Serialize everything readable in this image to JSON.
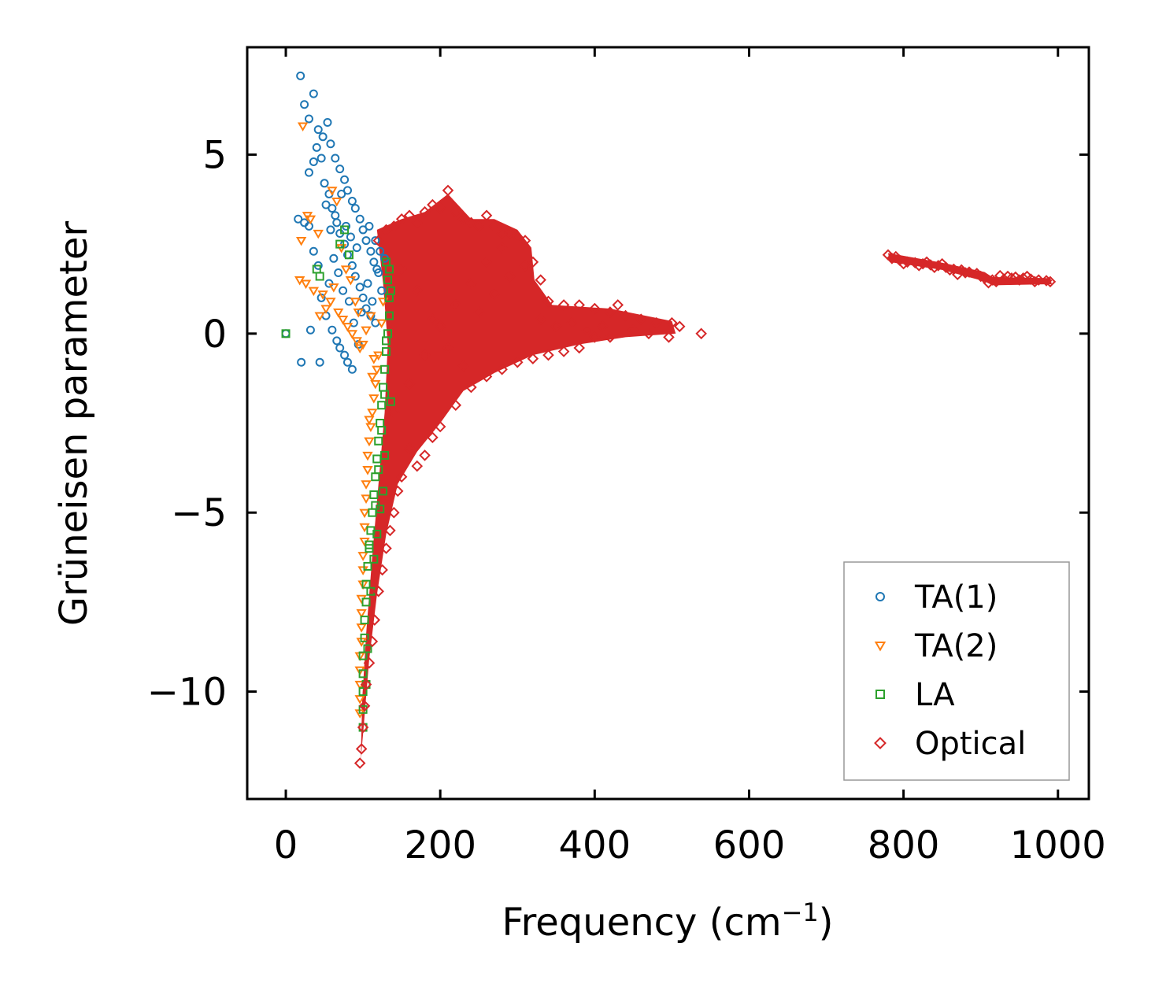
{
  "chart_data": {
    "type": "scatter",
    "title": "",
    "xlabel": "Frequency (cm",
    "xlabel_sup": "−1",
    "xlabel_end": ")",
    "ylabel": "Grüneisen parameter",
    "xlim": [
      -50,
      1040
    ],
    "ylim": [
      -13,
      8
    ],
    "xticks": [
      0,
      200,
      400,
      600,
      800,
      1000
    ],
    "xtick_labels": [
      "0",
      "200",
      "400",
      "600",
      "800",
      "1000"
    ],
    "yticks": [
      -10,
      -5,
      0,
      5
    ],
    "ytick_labels": [
      "−10",
      "−5",
      "0",
      "5"
    ],
    "legend_position": "bottom-right",
    "series": [
      {
        "name": "TA(1)",
        "color": "#1f77b4",
        "marker": "circle",
        "points": [
          [
            19,
            7.2
          ],
          [
            24,
            6.4
          ],
          [
            30,
            6.0
          ],
          [
            36,
            6.7
          ],
          [
            42,
            5.7
          ],
          [
            48,
            5.5
          ],
          [
            54,
            5.9
          ],
          [
            58,
            5.3
          ],
          [
            64,
            4.9
          ],
          [
            70,
            4.6
          ],
          [
            76,
            4.3
          ],
          [
            80,
            4.0
          ],
          [
            86,
            3.7
          ],
          [
            90,
            3.5
          ],
          [
            96,
            3.2
          ],
          [
            100,
            2.9
          ],
          [
            104,
            2.6
          ],
          [
            110,
            2.3
          ],
          [
            114,
            2.0
          ],
          [
            120,
            1.7
          ],
          [
            30,
            4.5
          ],
          [
            36,
            4.8
          ],
          [
            40,
            5.2
          ],
          [
            46,
            4.9
          ],
          [
            50,
            4.2
          ],
          [
            56,
            3.9
          ],
          [
            60,
            3.5
          ],
          [
            66,
            3.1
          ],
          [
            70,
            2.8
          ],
          [
            76,
            2.5
          ],
          [
            80,
            2.2
          ],
          [
            86,
            1.9
          ],
          [
            90,
            1.6
          ],
          [
            96,
            1.3
          ],
          [
            100,
            1.0
          ],
          [
            104,
            0.7
          ],
          [
            110,
            0.5
          ],
          [
            116,
            0.3
          ],
          [
            16,
            3.2
          ],
          [
            24,
            3.1
          ],
          [
            30,
            3.0
          ],
          [
            36,
            2.3
          ],
          [
            42,
            1.9
          ],
          [
            46,
            1.0
          ],
          [
            52,
            0.5
          ],
          [
            60,
            0.1
          ],
          [
            66,
            -0.2
          ],
          [
            70,
            -0.4
          ],
          [
            76,
            -0.6
          ],
          [
            80,
            -0.8
          ],
          [
            86,
            -1.0
          ],
          [
            20,
            -0.8
          ],
          [
            44,
            -0.8
          ],
          [
            0,
            0
          ],
          [
            32,
            0.1
          ],
          [
            56,
            1.4
          ],
          [
            62,
            2.1
          ],
          [
            68,
            1.7
          ],
          [
            74,
            1.2
          ],
          [
            82,
            0.9
          ],
          [
            88,
            0.3
          ],
          [
            94,
            -0.3
          ],
          [
            98,
            0.6
          ],
          [
            106,
            1.4
          ],
          [
            112,
            0.9
          ],
          [
            118,
            1.8
          ],
          [
            124,
            1.2
          ],
          [
            128,
            2.1
          ],
          [
            52,
            3.6
          ],
          [
            58,
            2.9
          ],
          [
            64,
            3.3
          ],
          [
            72,
            3.9
          ],
          [
            78,
            3.0
          ],
          [
            84,
            2.7
          ],
          [
            92,
            2.4
          ],
          [
            108,
            3.0
          ],
          [
            116,
            2.6
          ],
          [
            122,
            2.3
          ]
        ]
      },
      {
        "name": "TA(2)",
        "color": "#ff7f0e",
        "marker": "triangle-down",
        "points": [
          [
            22,
            5.8
          ],
          [
            28,
            3.3
          ],
          [
            32,
            3.2
          ],
          [
            42,
            2.8
          ],
          [
            20,
            2.6
          ],
          [
            18,
            1.5
          ],
          [
            26,
            1.4
          ],
          [
            36,
            1.2
          ],
          [
            48,
            1.1
          ],
          [
            58,
            0.9
          ],
          [
            68,
            0.6
          ],
          [
            74,
            0.4
          ],
          [
            80,
            0.2
          ],
          [
            86,
            0.0
          ],
          [
            92,
            -0.2
          ],
          [
            96,
            -0.4
          ],
          [
            100,
            -0.3
          ],
          [
            104,
            0.1
          ],
          [
            110,
            0.5
          ],
          [
            114,
            -0.7
          ],
          [
            118,
            -1.0
          ],
          [
            116,
            -1.4
          ],
          [
            114,
            -1.8
          ],
          [
            112,
            -2.2
          ],
          [
            110,
            -2.6
          ],
          [
            108,
            -3.0
          ],
          [
            106,
            -3.4
          ],
          [
            106,
            -3.8
          ],
          [
            104,
            -4.2
          ],
          [
            104,
            -4.6
          ],
          [
            102,
            -5.0
          ],
          [
            102,
            -5.4
          ],
          [
            102,
            -5.8
          ],
          [
            100,
            -6.2
          ],
          [
            100,
            -6.6
          ],
          [
            100,
            -7.0
          ],
          [
            98,
            -7.4
          ],
          [
            98,
            -7.8
          ],
          [
            98,
            -8.2
          ],
          [
            98,
            -8.6
          ],
          [
            96,
            -9.0
          ],
          [
            96,
            -9.4
          ],
          [
            96,
            -9.8
          ],
          [
            96,
            -10.2
          ],
          [
            96,
            -10.6
          ],
          [
            108,
            -2.4
          ],
          [
            112,
            -1.2
          ],
          [
            120,
            -0.6
          ],
          [
            124,
            0.3
          ],
          [
            126,
            0.9
          ],
          [
            60,
            4.0
          ],
          [
            66,
            3.7
          ],
          [
            72,
            2.4
          ],
          [
            78,
            1.8
          ],
          [
            84,
            1.5
          ],
          [
            90,
            0.9
          ],
          [
            94,
            0.6
          ],
          [
            62,
            1.3
          ],
          [
            52,
            0.7
          ],
          [
            44,
            0.5
          ]
        ]
      },
      {
        "name": "LA",
        "color": "#2ca02c",
        "marker": "square",
        "points": [
          [
            0,
            0
          ],
          [
            40,
            1.8
          ],
          [
            44,
            1.6
          ],
          [
            70,
            2.5
          ],
          [
            76,
            2.9
          ],
          [
            82,
            2.2
          ],
          [
            130,
            2.0
          ],
          [
            132,
            1.5
          ],
          [
            134,
            1.0
          ],
          [
            134,
            0.5
          ],
          [
            132,
            0.0
          ],
          [
            130,
            -0.5
          ],
          [
            128,
            -1.0
          ],
          [
            126,
            -1.5
          ],
          [
            124,
            -2.0
          ],
          [
            122,
            -2.5
          ],
          [
            120,
            -3.0
          ],
          [
            118,
            -3.5
          ],
          [
            116,
            -4.0
          ],
          [
            114,
            -4.5
          ],
          [
            112,
            -5.0
          ],
          [
            110,
            -5.5
          ],
          [
            108,
            -6.0
          ],
          [
            106,
            -6.5
          ],
          [
            104,
            -7.0
          ],
          [
            104,
            -7.5
          ],
          [
            102,
            -8.0
          ],
          [
            102,
            -8.5
          ],
          [
            100,
            -9.0
          ],
          [
            100,
            -9.5
          ],
          [
            100,
            -10.0
          ],
          [
            100,
            -10.5
          ],
          [
            100,
            -11.0
          ],
          [
            136,
            -1.9
          ],
          [
            128,
            -3.4
          ],
          [
            126,
            -4.4
          ],
          [
            122,
            -4.9
          ],
          [
            118,
            -5.6
          ],
          [
            114,
            -6.3
          ],
          [
            110,
            -7.2
          ],
          [
            134,
            1.8
          ],
          [
            136,
            1.2
          ],
          [
            130,
            -0.2
          ],
          [
            128,
            -1.7
          ],
          [
            124,
            -2.7
          ],
          [
            120,
            -3.8
          ],
          [
            116,
            -4.8
          ],
          [
            108,
            -5.9
          ],
          [
            106,
            -8.8
          ],
          [
            104,
            -9.8
          ]
        ]
      },
      {
        "name": "Optical",
        "color": "#d62728",
        "marker": "diamond",
        "points": [
          [
            120,
            2.6
          ],
          [
            130,
            2.9
          ],
          [
            140,
            3.0
          ],
          [
            150,
            3.2
          ],
          [
            160,
            3.3
          ],
          [
            170,
            3.1
          ],
          [
            180,
            3.4
          ],
          [
            190,
            3.6
          ],
          [
            200,
            3.5
          ],
          [
            210,
            4.0
          ],
          [
            220,
            3.4
          ],
          [
            230,
            3.2
          ],
          [
            240,
            3.1
          ],
          [
            250,
            3.0
          ],
          [
            260,
            3.3
          ],
          [
            270,
            3.0
          ],
          [
            280,
            2.8
          ],
          [
            290,
            2.8
          ],
          [
            300,
            2.7
          ],
          [
            310,
            2.6
          ],
          [
            320,
            2.0
          ],
          [
            330,
            1.5
          ],
          [
            340,
            0.9
          ],
          [
            360,
            0.8
          ],
          [
            380,
            0.8
          ],
          [
            400,
            0.7
          ],
          [
            420,
            0.6
          ],
          [
            430,
            0.8
          ],
          [
            440,
            0.5
          ],
          [
            460,
            0.4
          ],
          [
            480,
            0.3
          ],
          [
            500,
            0.3
          ],
          [
            510,
            0.2
          ],
          [
            538,
            0.0
          ],
          [
            496,
            -0.1
          ],
          [
            470,
            0.0
          ],
          [
            450,
            0.1
          ],
          [
            420,
            -0.1
          ],
          [
            400,
            -0.1
          ],
          [
            380,
            -0.4
          ],
          [
            360,
            -0.5
          ],
          [
            340,
            -0.6
          ],
          [
            320,
            -0.7
          ],
          [
            300,
            -0.8
          ],
          [
            280,
            -1.0
          ],
          [
            260,
            -1.2
          ],
          [
            240,
            -1.5
          ],
          [
            220,
            -2.0
          ],
          [
            200,
            -2.6
          ],
          [
            190,
            -2.9
          ],
          [
            180,
            -3.4
          ],
          [
            170,
            -3.7
          ],
          [
            160,
            -3.2
          ],
          [
            150,
            -4.0
          ],
          [
            145,
            -4.4
          ],
          [
            140,
            -5.0
          ],
          [
            135,
            -5.5
          ],
          [
            130,
            -6.0
          ],
          [
            125,
            -6.6
          ],
          [
            120,
            -7.2
          ],
          [
            115,
            -8.0
          ],
          [
            112,
            -8.6
          ],
          [
            108,
            -9.2
          ],
          [
            104,
            -9.8
          ],
          [
            102,
            -10.4
          ],
          [
            100,
            -11.0
          ],
          [
            98,
            -11.6
          ],
          [
            96,
            -12.0
          ],
          [
            140,
            -2.2
          ],
          [
            160,
            -1.4
          ],
          [
            180,
            -0.6
          ],
          [
            200,
            0.2
          ],
          [
            220,
            0.8
          ],
          [
            240,
            1.4
          ],
          [
            260,
            2.0
          ],
          [
            280,
            2.4
          ],
          [
            150,
            1.8
          ],
          [
            170,
            1.2
          ],
          [
            190,
            0.4
          ],
          [
            210,
            -0.4
          ],
          [
            230,
            -0.9
          ],
          [
            250,
            0.6
          ],
          [
            270,
            1.1
          ],
          [
            290,
            1.6
          ],
          [
            310,
            1.9
          ],
          [
            330,
            0.4
          ],
          [
            350,
            0.2
          ],
          [
            370,
            0.3
          ],
          [
            390,
            0.1
          ],
          [
            410,
            0.2
          ],
          [
            785,
            2.1
          ],
          [
            795,
            2.05
          ],
          [
            805,
            2.0
          ],
          [
            815,
            1.98
          ],
          [
            825,
            1.95
          ],
          [
            835,
            1.92
          ],
          [
            845,
            1.9
          ],
          [
            855,
            1.85
          ],
          [
            865,
            1.8
          ],
          [
            875,
            1.78
          ],
          [
            885,
            1.72
          ],
          [
            895,
            1.68
          ],
          [
            905,
            1.55
          ],
          [
            915,
            1.5
          ],
          [
            925,
            1.62
          ],
          [
            935,
            1.6
          ],
          [
            945,
            1.58
          ],
          [
            955,
            1.55
          ],
          [
            965,
            1.52
          ],
          [
            975,
            1.5
          ],
          [
            985,
            1.48
          ],
          [
            790,
            2.15
          ],
          [
            800,
            1.95
          ],
          [
            820,
            1.9
          ],
          [
            840,
            1.85
          ],
          [
            860,
            1.78
          ],
          [
            880,
            1.7
          ],
          [
            900,
            1.6
          ],
          [
            910,
            1.42
          ],
          [
            930,
            1.52
          ],
          [
            950,
            1.5
          ],
          [
            970,
            1.45
          ],
          [
            990,
            1.45
          ],
          [
            780,
            2.2
          ],
          [
            870,
            1.65
          ],
          [
            920,
            1.45
          ],
          [
            960,
            1.6
          ],
          [
            940,
            1.55
          ],
          [
            850,
            1.95
          ],
          [
            830,
            2.0
          ]
        ]
      }
    ]
  }
}
